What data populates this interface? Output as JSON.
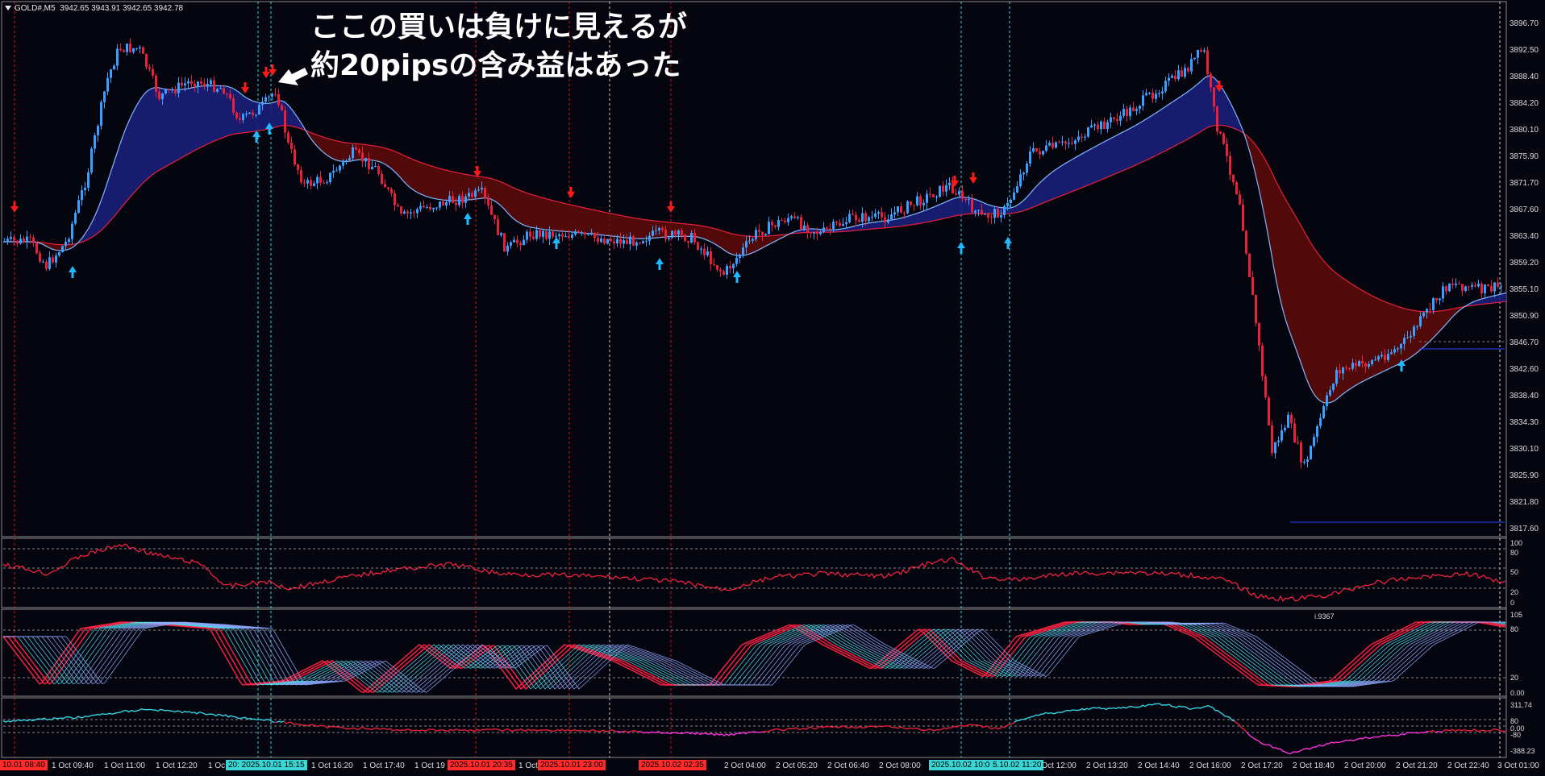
{
  "header": {
    "symbol": "GOLD#,M5",
    "ohlc": "3942.65 3943.91 3942.65 3942.78"
  },
  "annotation": {
    "line1": "ここの買いは負けに見えるが",
    "line2": "約20pipsの含み益はあった"
  },
  "price_axis": [
    "3896.70",
    "3892.50",
    "3888.40",
    "3884.20",
    "3880.10",
    "3875.90",
    "3871.70",
    "3867.60",
    "3863.40",
    "3859.20",
    "3855.10",
    "3850.90",
    "3846.70",
    "3842.60",
    "3838.40",
    "3834.30",
    "3830.10",
    "3825.90",
    "3821.80",
    "3817.60"
  ],
  "rsi_axis": [
    "100",
    "80",
    "50",
    "20",
    "0"
  ],
  "stoch_axis": [
    "105",
    "80",
    "20",
    "0.00"
  ],
  "stoch_value": "i.9367",
  "cci_axis": [
    "311.74",
    "80",
    "0.00",
    "-80",
    "-388.23"
  ],
  "time_axis": [
    "1 Oct 09:40",
    "1 Oct 11:00",
    "1 Oct 12:20",
    "1 Oc",
    "1 Oct 16:20",
    "1 Oct 17:40",
    "1 Oct 19",
    "1 Oct",
    "2 Oct 04:00",
    "2 Oct 05:20",
    "2 Oct 06:40",
    "2 Oct 08:00",
    "2 Oct 12:00",
    "2 Oct 13:20",
    "2 Oct 14:40",
    "2 Oct 16:00",
    "2 Oct 17:20",
    "2 Oct 18:40",
    "2 Oct 20:00",
    "2 Oct 21:20",
    "2 Oct 22:40",
    "3 Oct 01:00"
  ],
  "time_badges": [
    {
      "text": "10.01 08:40",
      "color": "#ff2a2a"
    },
    {
      "text": "20: 2025.10.01 15:15",
      "color": "#3ad6d6"
    },
    {
      "text": "2025.10.01 20:35",
      "color": "#ff2a2a"
    },
    {
      "text": "2025.10.01 23:00",
      "color": "#ff2a2a"
    },
    {
      "text": "2025.10.02 02:35",
      "color": "#ff2a2a"
    },
    {
      "text": "2025.10.02 10:05",
      "color": "#3ad6d6"
    },
    {
      "text": "5.10.02 11:20",
      "color": "#3ad6d6"
    }
  ],
  "colors": {
    "background": "#05050f",
    "bull": "#3aa0ff",
    "bear": "#e8203a",
    "cloud_up": "#1a1f7a",
    "cloud_down": "#5a0a0a",
    "cyan": "#33d6e6"
  }
}
